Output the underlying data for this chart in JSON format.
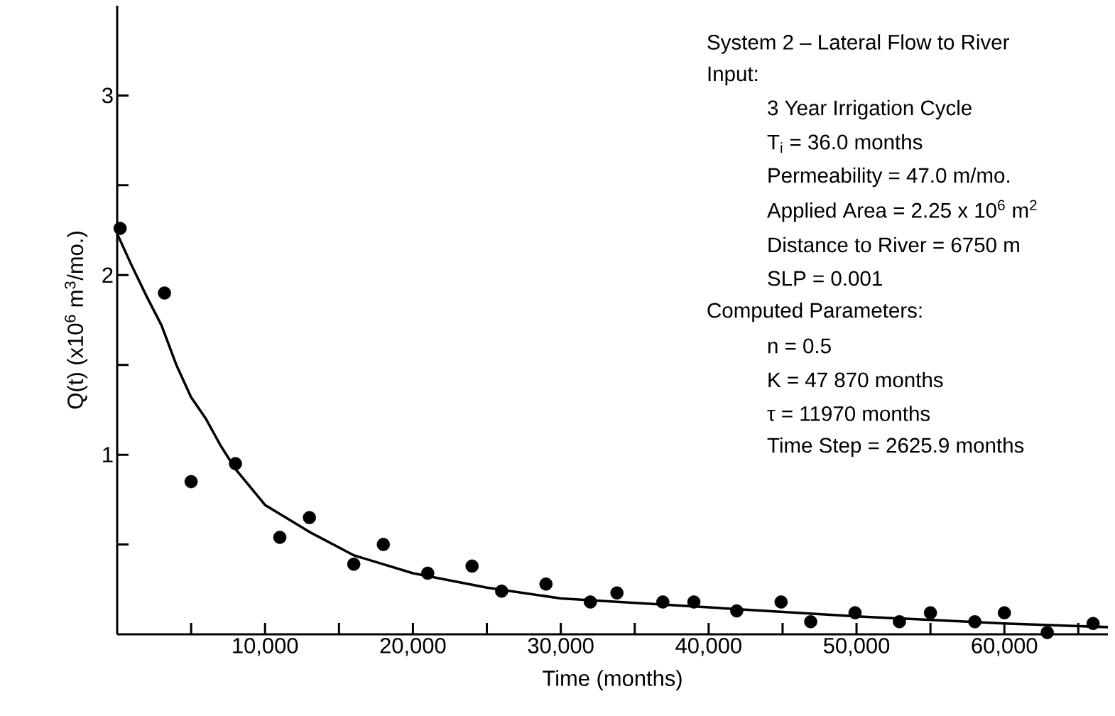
{
  "chart_data": {
    "type": "scatter",
    "title": "System 2 – Lateral Flow to River",
    "xlabel": "Time     (months)",
    "ylabel": "Q(t)   (x10$^{6}$ m$^{3}$/mo.)",
    "xlim": [
      0,
      67000
    ],
    "ylim": [
      0,
      3.5
    ],
    "xticks": [
      {
        "value": 5000,
        "label": null
      },
      {
        "value": 10000,
        "label": "10,000"
      },
      {
        "value": 15000,
        "label": null
      },
      {
        "value": 20000,
        "label": "20,000"
      },
      {
        "value": 25000,
        "label": null
      },
      {
        "value": 30000,
        "label": "30,000"
      },
      {
        "value": 35000,
        "label": null
      },
      {
        "value": 40000,
        "label": "40,000"
      },
      {
        "value": 45000,
        "label": null
      },
      {
        "value": 50000,
        "label": "50,000"
      },
      {
        "value": 55000,
        "label": null
      },
      {
        "value": 60000,
        "label": "60,000"
      },
      {
        "value": 65000,
        "label": null
      }
    ],
    "yticks": [
      {
        "value": 0.5,
        "label": null
      },
      1,
      {
        "value": 1.5,
        "label": null
      },
      2,
      {
        "value": 2.5,
        "label": null
      },
      3
    ],
    "series": [
      {
        "marker": "circle",
        "color": "#000000",
        "x": [
          200,
          3200,
          5000,
          8000,
          11000,
          13000,
          16000,
          18000,
          21000,
          24000,
          26000,
          29000,
          32000,
          33800,
          36900,
          39000,
          41900,
          44900,
          46900,
          49900,
          52900,
          55000,
          58000,
          60000,
          62900,
          66000
        ],
        "values": [
          2.26,
          1.9,
          0.85,
          0.95,
          0.54,
          0.65,
          0.39,
          0.5,
          0.34,
          0.38,
          0.24,
          0.28,
          0.18,
          0.23,
          0.18,
          0.18,
          0.13,
          0.18,
          0.07,
          0.12,
          0.07,
          0.12,
          0.07,
          0.12,
          0.01,
          0.06
        ]
      },
      {
        "type": "line",
        "marker": "none",
        "color": "#000000",
        "x": [
          0,
          1000,
          2000,
          3000,
          4000,
          5000,
          6000,
          7000,
          8000,
          10000,
          13000,
          16000,
          20000,
          25000,
          30000,
          40000,
          50000,
          60000,
          67000
        ],
        "values": [
          2.23,
          2.05,
          1.88,
          1.72,
          1.5,
          1.32,
          1.2,
          1.05,
          0.92,
          0.72,
          0.57,
          0.44,
          0.34,
          0.26,
          0.2,
          0.15,
          0.1,
          0.06,
          0.04
        ]
      }
    ],
    "annotations": [
      "Input:",
      "3 Year Irrigation Cycle",
      "T$_{i}$  =  36.0  months",
      "Permeability  =  47.0  m/mo.",
      "Applied Area  =  2.25 x 10$^{6}$ m$^{2}$",
      "Distance  to  River  =  6750  m",
      "SLP = 0.001",
      "Computed  Parameters:",
      "n  =  0.5",
      "K  =  47 870  months",
      "τ  =  11970  months",
      "Time Step  =  2625.9  months"
    ]
  }
}
